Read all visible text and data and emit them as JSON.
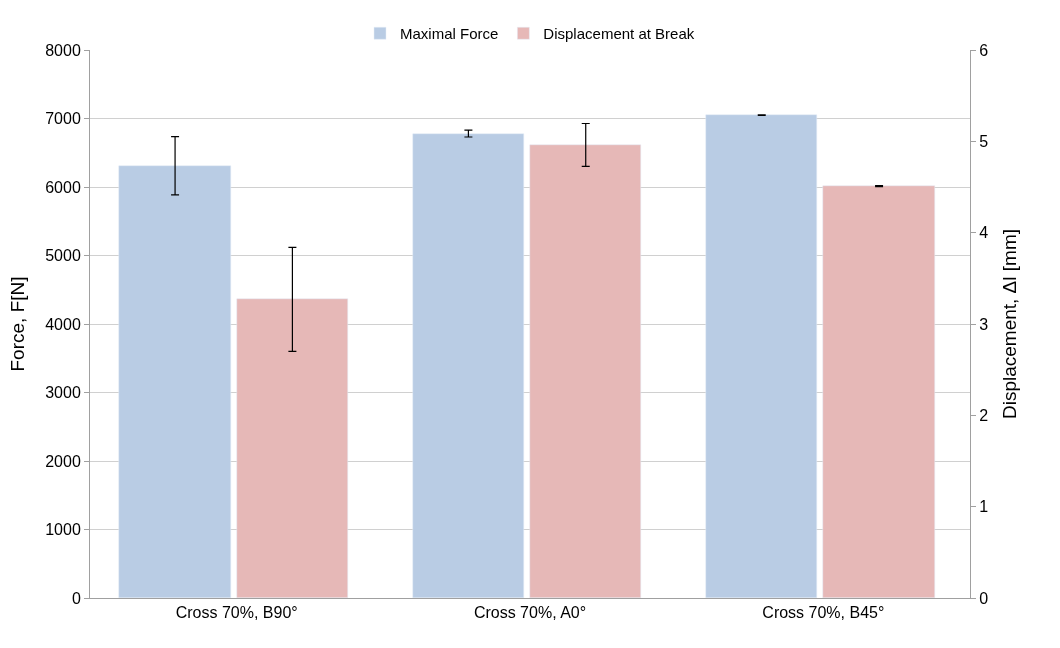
{
  "chart_data": {
    "type": "bar",
    "ylabel": "Force, F[N]",
    "y2label": "Displacement, Δl [mm]",
    "categories": [
      "Cross 70%, B90°",
      "Cross 70%, A0°",
      "Cross 70%, B45°"
    ],
    "series": [
      {
        "name": "Maximal Force",
        "color": "#b9cce4",
        "values": [
          6310,
          6780,
          7050
        ],
        "errors": [
          425,
          50,
          5
        ]
      },
      {
        "name": "Displacement at Break",
        "color": "#e6b8b7",
        "values": [
          3.27,
          4.96,
          4.51
        ],
        "errors": [
          0.57,
          0.235,
          0.005
        ],
        "axis": "y2"
      }
    ],
    "ylim": [
      0,
      8000
    ],
    "yticks": [
      0,
      1000,
      2000,
      3000,
      4000,
      5000,
      6000,
      7000,
      8000
    ],
    "y2lim": [
      0,
      6
    ],
    "y2ticks": [
      0,
      1,
      2,
      3,
      4,
      5,
      6
    ],
    "grid": "y",
    "legend": "top"
  }
}
